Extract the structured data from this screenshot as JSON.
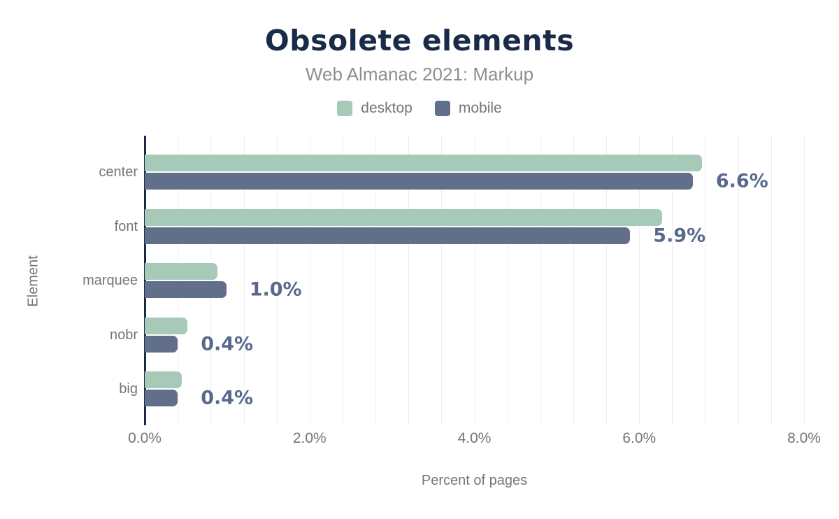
{
  "title": "Obsolete elements",
  "subtitle": "Web Almanac 2021: Markup",
  "legend": {
    "items": [
      {
        "label": "desktop",
        "color": "#a7c9b8"
      },
      {
        "label": "mobile",
        "color": "#626f8b"
      }
    ]
  },
  "axes": {
    "x_label": "Percent of pages",
    "y_label": "Element",
    "x_ticks": [
      "0.0%",
      "2.0%",
      "4.0%",
      "6.0%",
      "8.0%"
    ]
  },
  "colors": {
    "desktop": "#a7c9b8",
    "mobile": "#626f8b",
    "title": "#1a2b49",
    "axis": "#1a2b4a",
    "value_label": "#58698d",
    "muted_text": "#757575",
    "subtitle_text": "#8f8f8f",
    "grid": "#ededed",
    "background": "#ffffff"
  },
  "chart_data": {
    "type": "bar",
    "orientation": "horizontal",
    "title": "Obsolete elements",
    "subtitle": "Web Almanac 2021: Markup",
    "categories": [
      "center",
      "font",
      "marquee",
      "nobr",
      "big"
    ],
    "series": [
      {
        "name": "desktop",
        "color": "#a7c9b8",
        "values": [
          6.76,
          6.28,
          0.88,
          0.52,
          0.45
        ]
      },
      {
        "name": "mobile",
        "color": "#626f8b",
        "values": [
          6.65,
          5.89,
          0.99,
          0.4,
          0.4
        ]
      }
    ],
    "bar_labels": {
      "labeled_series": "mobile",
      "values": [
        "6.6%",
        "5.9%",
        "1.0%",
        "0.4%",
        "0.4%"
      ]
    },
    "xlabel": "Percent of pages",
    "ylabel": "Element",
    "xlim": [
      0,
      8
    ],
    "xtick_labels": [
      "0.0%",
      "2.0%",
      "4.0%",
      "6.0%",
      "8.0%"
    ],
    "grid_step": 0.4,
    "grid": true,
    "legend_position": "top"
  }
}
